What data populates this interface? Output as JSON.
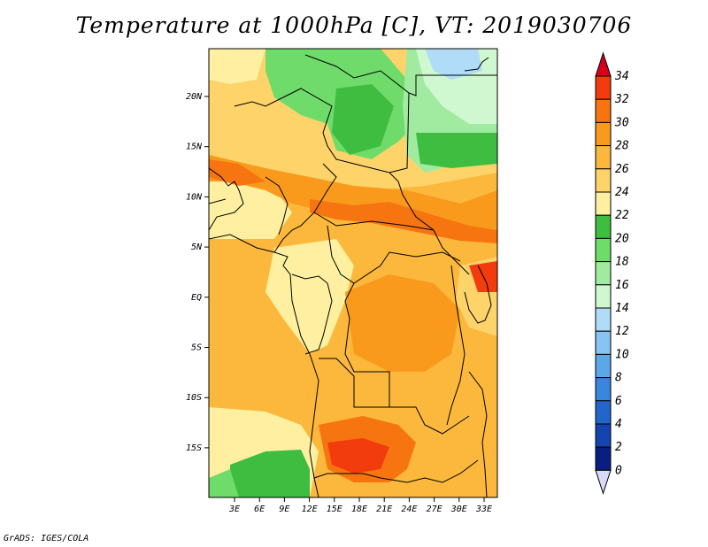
{
  "title": "Temperature at 1000hPa [C], VT: 2019030706",
  "credit": "GrADS: IGES/COLA",
  "map": {
    "lat_labels": [
      "20N",
      "15N",
      "10N",
      "5N",
      "EQ",
      "5S",
      "10S",
      "15S"
    ],
    "lon_labels": [
      "3E",
      "6E",
      "9E",
      "12E",
      "15E",
      "18E",
      "21E",
      "24E",
      "27E",
      "30E",
      "33E"
    ]
  },
  "colorbar": {
    "labels": [
      "34",
      "32",
      "30",
      "28",
      "26",
      "24",
      "22",
      "20",
      "18",
      "16",
      "14",
      "12",
      "10",
      "8",
      "6",
      "4",
      "2",
      "0"
    ],
    "colors": {
      "above_34": "#d7001b",
      "32_34": "#f23c0d",
      "30_32": "#f77510",
      "28_30": "#f99a1c",
      "26_28": "#fbb83c",
      "24_26": "#fdd36a",
      "22_24": "#fef0a0",
      "20_22": "#3fbd40",
      "18_20": "#6fdb6a",
      "16_18": "#a0eba0",
      "14_16": "#d0f8d0",
      "12_14": "#b0dcf8",
      "10_12": "#88c4f2",
      "8_10": "#5aa8ea",
      "6_8": "#3a86dc",
      "4_6": "#2266cc",
      "2_4": "#1444b0",
      "0_2": "#0a1e80",
      "below_0": "#d8d8f8"
    }
  }
}
